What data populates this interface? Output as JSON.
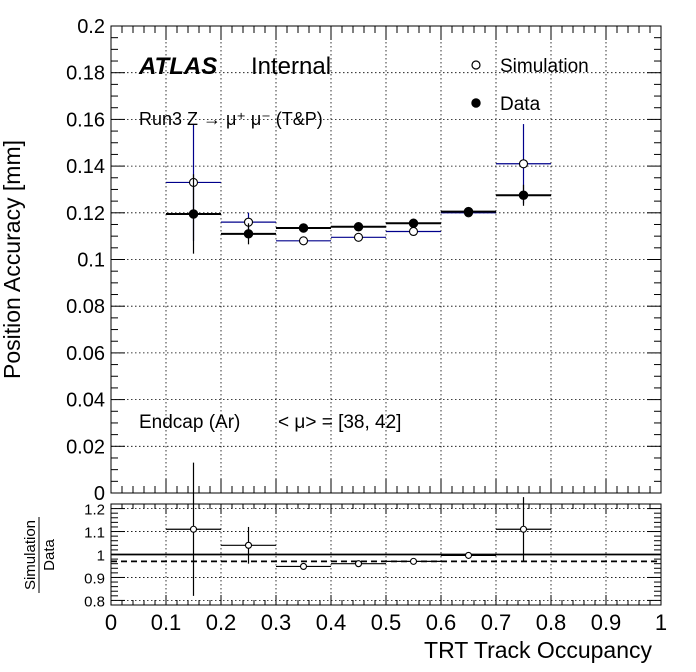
{
  "chart_data": [
    {
      "type": "scatter",
      "title": "",
      "ylabel": "Position Accuracy [mm]",
      "xlabel": "",
      "xlim": [
        0,
        1
      ],
      "ylim": [
        0,
        0.2
      ],
      "x_ticks": [
        "0",
        "0.1",
        "0.2",
        "0.3",
        "0.4",
        "0.5",
        "0.6",
        "0.7",
        "0.8",
        "0.9",
        "1"
      ],
      "y_ticks": [
        "0",
        "0.02",
        "0.04",
        "0.06",
        "0.08",
        "0.1",
        "0.12",
        "0.14",
        "0.16",
        "0.18",
        "0.2"
      ],
      "grid": true,
      "legend_position": "top-right",
      "atlas_label": "ATLAS",
      "atlas_sublabel": "Internal",
      "annotation_process": "Run3 Z → μ⁺ μ⁻ (T&P)",
      "annotation_region": "Endcap (Ar)",
      "annotation_pileup": "< μ> = [38, 42]",
      "series": [
        {
          "name": "Simulation",
          "marker": "open-circle",
          "color": "#00008b",
          "points": [
            {
              "x": 0.15,
              "xerr": 0.05,
              "y": 0.133,
              "yerr": 0.025
            },
            {
              "x": 0.25,
              "xerr": 0.05,
              "y": 0.116,
              "yerr": 0.004
            },
            {
              "x": 0.35,
              "xerr": 0.05,
              "y": 0.108,
              "yerr": 0.0008
            },
            {
              "x": 0.45,
              "xerr": 0.05,
              "y": 0.1095,
              "yerr": 0.0006
            },
            {
              "x": 0.55,
              "xerr": 0.05,
              "y": 0.112,
              "yerr": 0.0007
            },
            {
              "x": 0.65,
              "xerr": 0.05,
              "y": 0.12,
              "yerr": 0.001
            },
            {
              "x": 0.75,
              "xerr": 0.05,
              "y": 0.141,
              "yerr": 0.017
            }
          ]
        },
        {
          "name": "Data",
          "marker": "filled-circle",
          "color": "#000000",
          "points": [
            {
              "x": 0.15,
              "xerr": 0.05,
              "y": 0.1195,
              "yerr": 0.017
            },
            {
              "x": 0.25,
              "xerr": 0.05,
              "y": 0.111,
              "yerr": 0.0045
            },
            {
              "x": 0.35,
              "xerr": 0.05,
              "y": 0.1135,
              "yerr": 0.0008
            },
            {
              "x": 0.45,
              "xerr": 0.05,
              "y": 0.114,
              "yerr": 0.0008
            },
            {
              "x": 0.55,
              "xerr": 0.05,
              "y": 0.1155,
              "yerr": 0.0008
            },
            {
              "x": 0.65,
              "xerr": 0.05,
              "y": 0.1205,
              "yerr": 0.001
            },
            {
              "x": 0.75,
              "xerr": 0.05,
              "y": 0.1275,
              "yerr": 0.0045
            }
          ]
        }
      ]
    },
    {
      "type": "scatter",
      "title": "",
      "ylabel_numerator": "Simulation",
      "ylabel_denominator": "Data",
      "xlabel": "TRT Track Occupancy",
      "xlim": [
        0,
        1
      ],
      "ylim": [
        0.78,
        1.22
      ],
      "x_ticks": [
        "0",
        "0.1",
        "0.2",
        "0.3",
        "0.4",
        "0.5",
        "0.6",
        "0.7",
        "0.8",
        "0.9",
        "1"
      ],
      "y_ticks": [
        "0.8",
        "0.9",
        "1",
        "1.1",
        "1.2"
      ],
      "y_tick_values": [
        0.8,
        0.9,
        1.0,
        1.1,
        1.2
      ],
      "grid": true,
      "reference_line": 1.0,
      "mean_ratio_line": 0.97,
      "series": [
        {
          "name": "",
          "marker": "open-circle",
          "color": "#000000",
          "points": [
            {
              "x": 0.15,
              "xerr": 0.05,
              "y": 1.11,
              "yerr": 0.29
            },
            {
              "x": 0.25,
              "xerr": 0.05,
              "y": 1.04,
              "yerr": 0.08
            },
            {
              "x": 0.35,
              "xerr": 0.05,
              "y": 0.948,
              "yerr": 0.01
            },
            {
              "x": 0.45,
              "xerr": 0.05,
              "y": 0.96,
              "yerr": 0.008
            },
            {
              "x": 0.55,
              "xerr": 0.05,
              "y": 0.97,
              "yerr": 0.008
            },
            {
              "x": 0.65,
              "xerr": 0.05,
              "y": 0.996,
              "yerr": 0.01
            },
            {
              "x": 0.75,
              "xerr": 0.05,
              "y": 1.11,
              "yerr": 0.14
            }
          ]
        }
      ]
    }
  ]
}
